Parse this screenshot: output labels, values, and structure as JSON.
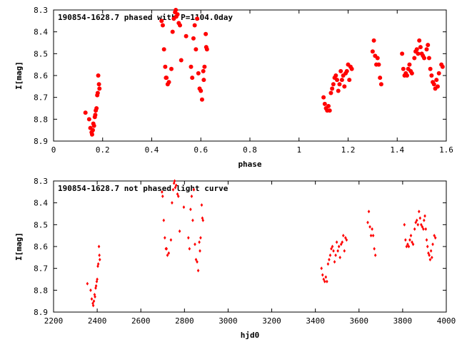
{
  "chart_data": [
    {
      "type": "scatter",
      "title": "190854-1628.7 phased with P=1104.0day",
      "xlabel": "phase",
      "ylabel": "I[mag]",
      "xlim": [
        0,
        1.6
      ],
      "ylim": [
        8.3,
        8.9
      ],
      "y_inverted": true,
      "grid": false,
      "legend": "none",
      "marker_color": "#ff0000",
      "x_ticks": [
        "0",
        "0.2",
        "0.4",
        "0.6",
        "0.8",
        "1",
        "1.2",
        "1.4",
        "1.6"
      ],
      "y_ticks": [
        "8.3",
        "8.4",
        "8.5",
        "8.6",
        "8.7",
        "8.8",
        "8.9"
      ],
      "points": [
        [
          0.13,
          8.77
        ],
        [
          0.145,
          8.8
        ],
        [
          0.15,
          8.84
        ],
        [
          0.155,
          8.86
        ],
        [
          0.157,
          8.87
        ],
        [
          0.16,
          8.85
        ],
        [
          0.162,
          8.82
        ],
        [
          0.165,
          8.83
        ],
        [
          0.168,
          8.79
        ],
        [
          0.17,
          8.78
        ],
        [
          0.172,
          8.76
        ],
        [
          0.175,
          8.75
        ],
        [
          0.178,
          8.69
        ],
        [
          0.18,
          8.68
        ],
        [
          0.182,
          8.6
        ],
        [
          0.185,
          8.64
        ],
        [
          0.187,
          8.66
        ],
        [
          0.44,
          8.35
        ],
        [
          0.445,
          8.37
        ],
        [
          0.45,
          8.48
        ],
        [
          0.455,
          8.56
        ],
        [
          0.458,
          8.61
        ],
        [
          0.46,
          8.61
        ],
        [
          0.465,
          8.64
        ],
        [
          0.47,
          8.63
        ],
        [
          0.48,
          8.57
        ],
        [
          0.485,
          8.4
        ],
        [
          0.49,
          8.34
        ],
        [
          0.495,
          8.31
        ],
        [
          0.498,
          8.3
        ],
        [
          0.5,
          8.33
        ],
        [
          0.505,
          8.32
        ],
        [
          0.51,
          8.36
        ],
        [
          0.515,
          8.37
        ],
        [
          0.52,
          8.53
        ],
        [
          0.54,
          8.42
        ],
        [
          0.56,
          8.56
        ],
        [
          0.565,
          8.61
        ],
        [
          0.57,
          8.43
        ],
        [
          0.575,
          8.37
        ],
        [
          0.58,
          8.48
        ],
        [
          0.585,
          8.34
        ],
        [
          0.59,
          8.59
        ],
        [
          0.595,
          8.66
        ],
        [
          0.6,
          8.67
        ],
        [
          0.605,
          8.71
        ],
        [
          0.61,
          8.58
        ],
        [
          0.612,
          8.62
        ],
        [
          0.615,
          8.56
        ],
        [
          0.62,
          8.41
        ],
        [
          0.622,
          8.47
        ],
        [
          0.625,
          8.48
        ],
        [
          1.1,
          8.7
        ],
        [
          1.105,
          8.73
        ],
        [
          1.11,
          8.75
        ],
        [
          1.115,
          8.76
        ],
        [
          1.12,
          8.74
        ],
        [
          1.125,
          8.76
        ],
        [
          1.13,
          8.68
        ],
        [
          1.135,
          8.66
        ],
        [
          1.14,
          8.64
        ],
        [
          1.145,
          8.61
        ],
        [
          1.15,
          8.6
        ],
        [
          1.155,
          8.62
        ],
        [
          1.16,
          8.67
        ],
        [
          1.165,
          8.64
        ],
        [
          1.17,
          8.58
        ],
        [
          1.175,
          8.62
        ],
        [
          1.18,
          8.6
        ],
        [
          1.185,
          8.65
        ],
        [
          1.19,
          8.59
        ],
        [
          1.195,
          8.58
        ],
        [
          1.2,
          8.55
        ],
        [
          1.205,
          8.62
        ],
        [
          1.21,
          8.56
        ],
        [
          1.215,
          8.57
        ],
        [
          1.3,
          8.49
        ],
        [
          1.305,
          8.44
        ],
        [
          1.31,
          8.51
        ],
        [
          1.315,
          8.55
        ],
        [
          1.32,
          8.52
        ],
        [
          1.325,
          8.55
        ],
        [
          1.33,
          8.61
        ],
        [
          1.335,
          8.64
        ],
        [
          1.42,
          8.5
        ],
        [
          1.425,
          8.57
        ],
        [
          1.43,
          8.6
        ],
        [
          1.435,
          8.59
        ],
        [
          1.44,
          8.6
        ],
        [
          1.445,
          8.57
        ],
        [
          1.45,
          8.55
        ],
        [
          1.455,
          8.58
        ],
        [
          1.46,
          8.59
        ],
        [
          1.47,
          8.52
        ],
        [
          1.475,
          8.49
        ],
        [
          1.48,
          8.48
        ],
        [
          1.485,
          8.5
        ],
        [
          1.49,
          8.44
        ],
        [
          1.495,
          8.47
        ],
        [
          1.5,
          8.5
        ],
        [
          1.505,
          8.51
        ],
        [
          1.51,
          8.52
        ],
        [
          1.52,
          8.48
        ],
        [
          1.525,
          8.46
        ],
        [
          1.53,
          8.52
        ],
        [
          1.535,
          8.57
        ],
        [
          1.54,
          8.6
        ],
        [
          1.545,
          8.63
        ],
        [
          1.55,
          8.64
        ],
        [
          1.555,
          8.66
        ],
        [
          1.56,
          8.62
        ],
        [
          1.565,
          8.65
        ],
        [
          1.57,
          8.59
        ],
        [
          1.58,
          8.55
        ],
        [
          1.585,
          8.56
        ]
      ]
    },
    {
      "type": "scatter",
      "title": "190854-1628.7 not phased light curve",
      "xlabel": "hjd0",
      "ylabel": "I[mag]",
      "xlim": [
        2200,
        4000
      ],
      "ylim": [
        8.3,
        8.9
      ],
      "y_inverted": true,
      "grid": false,
      "legend": "none",
      "marker_color": "#ff0000",
      "x_ticks": [
        "2200",
        "2400",
        "2600",
        "2800",
        "3000",
        "3200",
        "3400",
        "3600",
        "3800",
        "4000"
      ],
      "y_ticks": [
        "8.3",
        "8.4",
        "8.5",
        "8.6",
        "8.7",
        "8.8",
        "8.9"
      ],
      "points": [
        [
          2355,
          8.77
        ],
        [
          2370,
          8.8
        ],
        [
          2375,
          8.84
        ],
        [
          2380,
          8.86
        ],
        [
          2382,
          8.87
        ],
        [
          2385,
          8.85
        ],
        [
          2388,
          8.82
        ],
        [
          2390,
          8.83
        ],
        [
          2393,
          8.79
        ],
        [
          2395,
          8.78
        ],
        [
          2398,
          8.76
        ],
        [
          2400,
          8.75
        ],
        [
          2403,
          8.69
        ],
        [
          2405,
          8.68
        ],
        [
          2408,
          8.6
        ],
        [
          2410,
          8.64
        ],
        [
          2412,
          8.66
        ],
        [
          2697,
          8.35
        ],
        [
          2700,
          8.37
        ],
        [
          2705,
          8.48
        ],
        [
          2710,
          8.56
        ],
        [
          2715,
          8.61
        ],
        [
          2718,
          8.61
        ],
        [
          2722,
          8.64
        ],
        [
          2728,
          8.63
        ],
        [
          2738,
          8.57
        ],
        [
          2743,
          8.4
        ],
        [
          2748,
          8.34
        ],
        [
          2752,
          8.31
        ],
        [
          2755,
          8.3
        ],
        [
          2758,
          8.33
        ],
        [
          2762,
          8.32
        ],
        [
          2768,
          8.36
        ],
        [
          2772,
          8.37
        ],
        [
          2778,
          8.53
        ],
        [
          2797,
          8.42
        ],
        [
          2818,
          8.56
        ],
        [
          2823,
          8.61
        ],
        [
          2828,
          8.43
        ],
        [
          2833,
          8.37
        ],
        [
          2838,
          8.48
        ],
        [
          2843,
          8.34
        ],
        [
          2848,
          8.59
        ],
        [
          2853,
          8.66
        ],
        [
          2858,
          8.67
        ],
        [
          2863,
          8.71
        ],
        [
          2868,
          8.58
        ],
        [
          2871,
          8.62
        ],
        [
          2874,
          8.56
        ],
        [
          2879,
          8.41
        ],
        [
          2882,
          8.47
        ],
        [
          2885,
          8.48
        ],
        [
          3428,
          8.7
        ],
        [
          3433,
          8.73
        ],
        [
          3438,
          8.75
        ],
        [
          3443,
          8.76
        ],
        [
          3448,
          8.74
        ],
        [
          3453,
          8.76
        ],
        [
          3458,
          8.68
        ],
        [
          3463,
          8.66
        ],
        [
          3468,
          8.64
        ],
        [
          3473,
          8.61
        ],
        [
          3478,
          8.6
        ],
        [
          3483,
          8.62
        ],
        [
          3488,
          8.67
        ],
        [
          3493,
          8.64
        ],
        [
          3498,
          8.58
        ],
        [
          3503,
          8.62
        ],
        [
          3508,
          8.6
        ],
        [
          3513,
          8.65
        ],
        [
          3518,
          8.59
        ],
        [
          3523,
          8.58
        ],
        [
          3528,
          8.55
        ],
        [
          3533,
          8.62
        ],
        [
          3538,
          8.56
        ],
        [
          3543,
          8.57
        ],
        [
          3640,
          8.49
        ],
        [
          3645,
          8.44
        ],
        [
          3650,
          8.51
        ],
        [
          3655,
          8.55
        ],
        [
          3660,
          8.52
        ],
        [
          3665,
          8.55
        ],
        [
          3670,
          8.61
        ],
        [
          3675,
          8.64
        ],
        [
          3808,
          8.5
        ],
        [
          3813,
          8.57
        ],
        [
          3818,
          8.6
        ],
        [
          3823,
          8.59
        ],
        [
          3828,
          8.6
        ],
        [
          3833,
          8.57
        ],
        [
          3838,
          8.55
        ],
        [
          3843,
          8.58
        ],
        [
          3848,
          8.59
        ],
        [
          3855,
          8.52
        ],
        [
          3860,
          8.49
        ],
        [
          3865,
          8.48
        ],
        [
          3870,
          8.5
        ],
        [
          3875,
          8.44
        ],
        [
          3880,
          8.47
        ],
        [
          3885,
          8.5
        ],
        [
          3890,
          8.51
        ],
        [
          3895,
          8.52
        ],
        [
          3898,
          8.48
        ],
        [
          3902,
          8.46
        ],
        [
          3906,
          8.52
        ],
        [
          3910,
          8.57
        ],
        [
          3914,
          8.6
        ],
        [
          3918,
          8.63
        ],
        [
          3922,
          8.64
        ],
        [
          3926,
          8.66
        ],
        [
          3930,
          8.62
        ],
        [
          3934,
          8.65
        ],
        [
          3938,
          8.59
        ],
        [
          3945,
          8.55
        ],
        [
          3950,
          8.56
        ]
      ]
    }
  ]
}
